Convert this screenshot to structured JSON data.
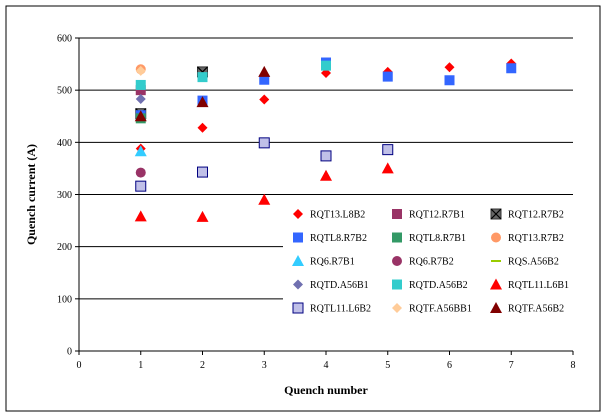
{
  "chart_data": {
    "type": "scatter",
    "title": "",
    "xlabel": "Quench number",
    "ylabel": "Quench current (A)",
    "xlim": [
      0,
      8
    ],
    "ylim": [
      0,
      600
    ],
    "x_ticks": [
      0,
      1,
      2,
      3,
      4,
      5,
      6,
      7,
      8
    ],
    "y_ticks": [
      0,
      100,
      200,
      300,
      400,
      500,
      600
    ],
    "grid": "horizontal major gridlines",
    "legend_position": "lower-right inside plot, 3 columns",
    "series": [
      {
        "name": "RQT13.L8B2",
        "marker": "diamond",
        "color": "#ff0000",
        "points": [
          [
            1,
            388
          ],
          [
            2,
            428
          ],
          [
            3,
            482
          ],
          [
            4,
            533
          ],
          [
            5,
            535
          ],
          [
            6,
            544
          ],
          [
            7,
            551
          ]
        ]
      },
      {
        "name": "RQT12.R7B1",
        "marker": "square",
        "color": "#993366",
        "points": [
          [
            1,
            500
          ]
        ]
      },
      {
        "name": "RQT12.R7B2",
        "marker": "square-x",
        "color": "#666666",
        "points": [
          [
            1,
            455
          ],
          [
            2,
            535
          ]
        ]
      },
      {
        "name": "RQTL8.R7B2",
        "marker": "square",
        "color": "#3366ff",
        "points": [
          [
            1,
            452
          ],
          [
            2,
            480
          ],
          [
            3,
            520
          ],
          [
            4,
            553
          ],
          [
            5,
            526
          ],
          [
            6,
            519
          ],
          [
            7,
            542
          ]
        ]
      },
      {
        "name": "RQTL8.R7B1",
        "marker": "square",
        "color": "#339966",
        "points": [
          [
            1,
            446
          ]
        ]
      },
      {
        "name": "RQT13.R7B2",
        "marker": "circle",
        "color": "#ff9966",
        "points": [
          [
            1,
            540
          ]
        ]
      },
      {
        "name": "RQ6.R7B1",
        "marker": "triangle",
        "color": "#33ccff",
        "points": [
          [
            1,
            383
          ]
        ]
      },
      {
        "name": "RQ6.R7B2",
        "marker": "circle",
        "color": "#993366",
        "points": [
          [
            1,
            342
          ]
        ]
      },
      {
        "name": "RQS.A56B2",
        "marker": "dash",
        "color": "#99cc00",
        "points": []
      },
      {
        "name": "RQTD.A56B1",
        "marker": "diamond",
        "color": "#7070b0",
        "points": [
          [
            1,
            483
          ]
        ]
      },
      {
        "name": "RQTD.A56B2",
        "marker": "square",
        "color": "#33cccc",
        "points": [
          [
            1,
            510
          ],
          [
            2,
            525
          ],
          [
            4,
            547
          ]
        ]
      },
      {
        "name": "RQTL11.L6B1",
        "marker": "triangle",
        "color": "#ff0000",
        "points": [
          [
            1,
            258
          ],
          [
            2,
            257
          ],
          [
            3,
            290
          ],
          [
            4,
            336
          ],
          [
            5,
            350
          ]
        ]
      },
      {
        "name": "RQTL11.L6B2",
        "marker": "square",
        "color": "#c0c0e8",
        "points": [
          [
            1,
            316
          ],
          [
            2,
            343
          ],
          [
            3,
            399
          ],
          [
            4,
            374
          ],
          [
            5,
            386
          ]
        ]
      },
      {
        "name": "RQTF.A56BB1",
        "marker": "diamond",
        "color": "#ffcc99",
        "points": [
          [
            1,
            537
          ]
        ]
      },
      {
        "name": "RQTF.A56B2",
        "marker": "triangle",
        "color": "#800000",
        "points": [
          [
            1,
            450
          ],
          [
            2,
            477
          ],
          [
            3,
            535
          ]
        ]
      }
    ]
  }
}
